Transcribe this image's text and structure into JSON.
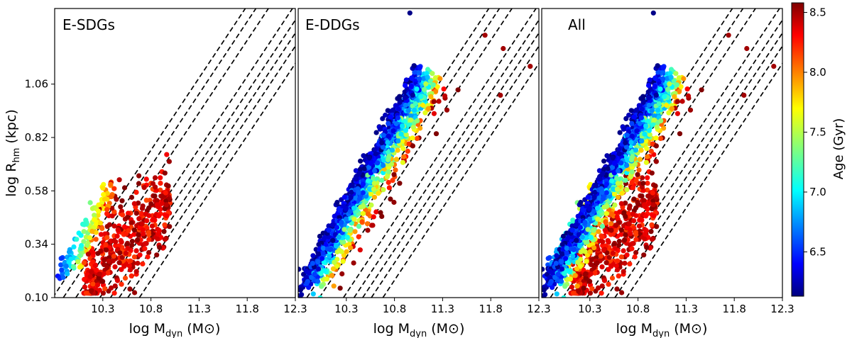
{
  "chart_data": {
    "type": "scatter",
    "panels": [
      {
        "title": "E-SDGs",
        "xlabel": "log M",
        "xlabel_sub": "dyn",
        "xlabel_unit": "(M⊙)"
      },
      {
        "title": "E-DDGs",
        "xlabel": "log M",
        "xlabel_sub": "dyn",
        "xlabel_unit": "(M⊙)"
      },
      {
        "title": "All",
        "xlabel": "log M",
        "xlabel_sub": "dyn",
        "xlabel_unit": "(M⊙)"
      }
    ],
    "ylabel": "log R",
    "ylabel_sub": "hm",
    "ylabel_unit": "(kpc)",
    "xlim": [
      9.8,
      12.3
    ],
    "ylim": [
      0.1,
      1.4
    ],
    "xticks": [
      "10.3",
      "10.8",
      "11.3",
      "11.8",
      "12.3"
    ],
    "xtick_values": [
      10.3,
      10.8,
      11.3,
      11.8,
      12.3
    ],
    "yticks": [
      "0.10",
      "0.34",
      "0.58",
      "0.82",
      "1.06"
    ],
    "ytick_values": [
      0.1,
      0.34,
      0.58,
      0.82,
      1.06
    ],
    "dashed_lines": {
      "slope": 0.65,
      "x_at_ylim_min": [
        9.78,
        9.89,
        10.02,
        10.27,
        10.38,
        10.47,
        10.56,
        10.68
      ]
    },
    "colorbar": {
      "label": "Age (Gyr)",
      "range": [
        6.13,
        8.58
      ],
      "ticks": [
        "6.5",
        "7.0",
        "7.5",
        "8.0",
        "8.5"
      ],
      "tick_values": [
        6.5,
        7.0,
        7.5,
        8.0,
        8.5
      ],
      "colormap": "jet"
    },
    "outliers": [
      {
        "x": 11.74,
        "y": 1.28,
        "age": 8.5
      },
      {
        "x": 11.93,
        "y": 1.22,
        "age": 8.5
      },
      {
        "x": 11.9,
        "y": 1.01,
        "age": 8.5
      },
      {
        "x": 12.21,
        "y": 1.14,
        "age": 8.5
      },
      {
        "x": 10.96,
        "y": 1.38,
        "age": 6.15
      }
    ],
    "point_clouds": {
      "E-SDGs": {
        "n": 560,
        "x_range": [
          9.82,
          11.1
        ],
        "age_range": [
          6.3,
          8.58
        ],
        "note": "red/old majority"
      },
      "E-DDGs": {
        "n": 1500,
        "x_range": [
          9.78,
          11.2
        ],
        "age_range": [
          6.13,
          8.58
        ],
        "note": "blue/young majority"
      },
      "All": {
        "n": 2000,
        "x_range": [
          9.78,
          11.3
        ],
        "age_range": [
          6.13,
          8.58
        ],
        "note": "combined"
      }
    }
  }
}
